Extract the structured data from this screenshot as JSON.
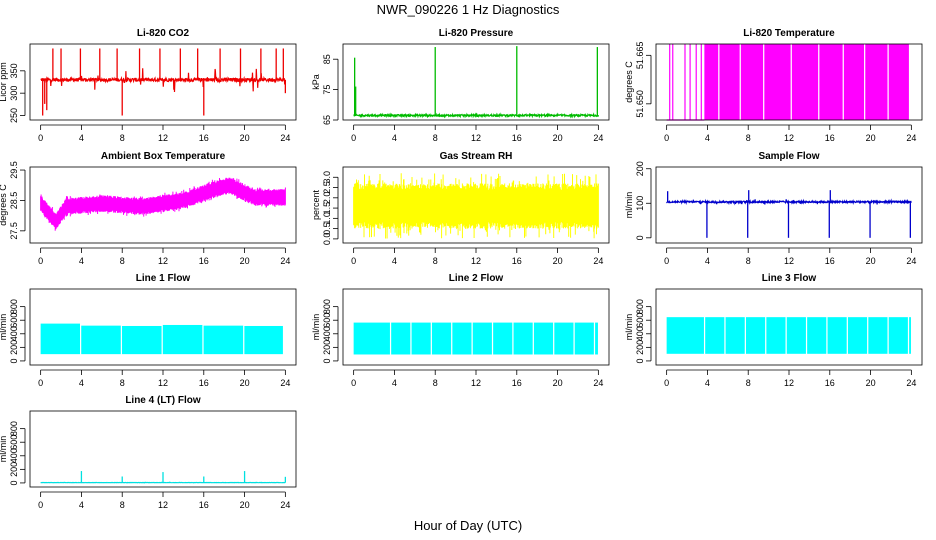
{
  "title": "NWR_090226  1 Hz Diagnostics",
  "x_axis_label": "Hour of Day (UTC)",
  "chart_data": [
    {
      "id": "co2",
      "type": "line",
      "title": "Li-820 CO2",
      "ylabel": "Licor ppm",
      "color": "#ee0000",
      "ylim": [
        240,
        410
      ],
      "yticks": [
        250,
        300,
        350
      ],
      "xlim": [
        0,
        24
      ],
      "xticks": [
        0,
        4,
        8,
        12,
        16,
        20,
        24
      ],
      "series": [
        {
          "kind": "noise",
          "base": 330,
          "amp": 4,
          "noise_max": 28,
          "spikes": [
            {
              "x": 0.2,
              "v": 250
            },
            {
              "x": 0.4,
              "v": 276
            },
            {
              "x": 0.6,
              "v": 262
            },
            {
              "x": 1.2,
              "v": 400
            },
            {
              "x": 2.0,
              "v": 400
            },
            {
              "x": 3.9,
              "v": 400
            },
            {
              "x": 5.8,
              "v": 400
            },
            {
              "x": 7.5,
              "v": 400
            },
            {
              "x": 8.0,
              "v": 250
            },
            {
              "x": 9.7,
              "v": 400
            },
            {
              "x": 11.7,
              "v": 400
            },
            {
              "x": 13.7,
              "v": 400
            },
            {
              "x": 15.4,
              "v": 400
            },
            {
              "x": 16.0,
              "v": 250
            },
            {
              "x": 17.6,
              "v": 400
            },
            {
              "x": 19.6,
              "v": 400
            },
            {
              "x": 21.6,
              "v": 400
            },
            {
              "x": 23.1,
              "v": 400
            },
            {
              "x": 23.8,
              "v": 400
            },
            {
              "x": 24.0,
              "v": 300
            }
          ]
        }
      ]
    },
    {
      "id": "pressure",
      "type": "line",
      "title": "Li-820 Pressure",
      "ylabel": "kPa",
      "color": "#00bb00",
      "ylim": [
        65,
        90
      ],
      "yticks": [
        65,
        75,
        85
      ],
      "xlim": [
        0,
        24
      ],
      "xticks": [
        0,
        4,
        8,
        12,
        16,
        20,
        24
      ],
      "series": [
        {
          "kind": "noise",
          "base": 66.5,
          "amp": 0.3,
          "noise_max": 0.5,
          "spikes": [
            {
              "x": 0.1,
              "v": 85.5
            },
            {
              "x": 0.2,
              "v": 76
            },
            {
              "x": 8.0,
              "v": 89
            },
            {
              "x": 16.0,
              "v": 89.3
            },
            {
              "x": 23.9,
              "v": 89
            }
          ]
        }
      ]
    },
    {
      "id": "li820temp",
      "type": "bar",
      "title": "Li-820 Temperature",
      "ylabel": "degrees C",
      "color": "#ff00ff",
      "ylim": [
        51.645,
        51.6685
      ],
      "yticks": [
        51.65,
        51.665
      ],
      "ytick_labels": [
        "51.650",
        "51.665"
      ],
      "xlim": [
        0,
        24
      ],
      "xticks": [
        0,
        4,
        8,
        12,
        16,
        20,
        24
      ],
      "series": [
        {
          "kind": "fill_bands",
          "low": 51.645,
          "high": 51.6685,
          "start": 3.7,
          "end": 23.8,
          "early_lines": [
            0.3,
            0.6,
            1.8,
            2.3,
            2.9,
            3.4
          ],
          "gaps": [
            5.1,
            7.2,
            9.5,
            12.2,
            14.9,
            17.3,
            19.4,
            21.7
          ]
        }
      ]
    },
    {
      "id": "ambient",
      "type": "line",
      "title": "Ambient Box Temperature",
      "ylabel": "degrees C",
      "color": "#ff00ff",
      "ylim": [
        27.1,
        29.6
      ],
      "yticks": [
        27.5,
        28.5,
        29.5
      ],
      "xlim": [
        0,
        24
      ],
      "xticks": [
        0,
        4,
        8,
        12,
        16,
        20,
        24
      ],
      "series": [
        {
          "kind": "band",
          "profile": [
            [
              0,
              28.4
            ],
            [
              1.5,
              27.8
            ],
            [
              2.5,
              28.3
            ],
            [
              6,
              28.4
            ],
            [
              10,
              28.3
            ],
            [
              14,
              28.5
            ],
            [
              16.5,
              28.8
            ],
            [
              18.5,
              29.0
            ],
            [
              21,
              28.6
            ],
            [
              24,
              28.6
            ]
          ],
          "width": 0.55,
          "noise_max": 0.7
        }
      ]
    },
    {
      "id": "gasrh",
      "type": "line",
      "title": "Gas Stream RH",
      "ylabel": "percent",
      "color": "#ffff00",
      "ylim": [
        -0.2,
        3.5
      ],
      "yticks": [
        0,
        0.5,
        1,
        1.5,
        2,
        2.5,
        3
      ],
      "ytick_labels": [
        "0.0",
        "0.5",
        "1.0",
        "1.5",
        "2.0",
        "2.5",
        "3.0"
      ],
      "xlim": [
        0,
        24
      ],
      "xticks": [
        0,
        4,
        8,
        12,
        16,
        20,
        24
      ],
      "series": [
        {
          "kind": "band",
          "profile": [
            [
              0,
              1.6
            ],
            [
              24,
              1.6
            ]
          ],
          "width": 2.2,
          "noise_max": 3.2
        }
      ]
    },
    {
      "id": "sampleflow",
      "type": "line",
      "title": "Sample Flow",
      "ylabel": "ml/min",
      "color": "#0000cc",
      "ylim": [
        -15,
        205
      ],
      "yticks": [
        0,
        100,
        200
      ],
      "xlim": [
        0,
        24
      ],
      "xticks": [
        0,
        4,
        8,
        12,
        16,
        20,
        24
      ],
      "series": [
        {
          "kind": "noise",
          "base": 104,
          "amp": 2.5,
          "noise_max": 8,
          "spikes": [
            {
              "x": 0.1,
              "v": 135
            },
            {
              "x": 3.95,
              "v": 0
            },
            {
              "x": 7.95,
              "v": 0
            },
            {
              "x": 8.05,
              "v": 138
            },
            {
              "x": 11.95,
              "v": 0
            },
            {
              "x": 15.95,
              "v": 0
            },
            {
              "x": 16.05,
              "v": 138
            },
            {
              "x": 19.95,
              "v": 0
            },
            {
              "x": 23.9,
              "v": 0
            }
          ]
        }
      ]
    },
    {
      "id": "line1",
      "type": "bar",
      "title": "Line 1 Flow",
      "ylabel": "ml/min",
      "color": "#00ffff",
      "ylim": [
        -60,
        1060
      ],
      "yticks": [
        0,
        200,
        400,
        600,
        800
      ],
      "xlim": [
        0,
        24
      ],
      "xticks": [
        0,
        4,
        8,
        12,
        16,
        20,
        24
      ],
      "series": [
        {
          "kind": "fill_bands",
          "low": 100,
          "high": 545,
          "start": 0.0,
          "end": 23.8,
          "gaps": [
            3.9,
            7.9,
            11.9,
            15.9,
            19.9
          ],
          "steps": [
            [
              0,
              550
            ],
            [
              3.9,
              520
            ],
            [
              7.9,
              515
            ],
            [
              11.9,
              530
            ],
            [
              15.9,
              520
            ],
            [
              19.9,
              515
            ]
          ]
        }
      ]
    },
    {
      "id": "line2",
      "type": "bar",
      "title": "Line 2 Flow",
      "ylabel": "ml/min",
      "color": "#00ffff",
      "ylim": [
        -60,
        1060
      ],
      "yticks": [
        0,
        200,
        400,
        600,
        800
      ],
      "xlim": [
        0,
        24
      ],
      "xticks": [
        0,
        4,
        8,
        12,
        16,
        20,
        24
      ],
      "series": [
        {
          "kind": "fill_bands",
          "low": 95,
          "high": 560,
          "start": 0.0,
          "end": 24.0,
          "gaps": [
            3.6,
            5.6,
            7.6,
            9.6,
            11.6,
            13.6,
            15.6,
            17.6,
            19.6,
            21.6,
            23.6
          ],
          "steps": [
            [
              0,
              565
            ]
          ]
        }
      ]
    },
    {
      "id": "line3",
      "type": "bar",
      "title": "Line 3 Flow",
      "ylabel": "ml/min",
      "color": "#00ffff",
      "ylim": [
        -60,
        1060
      ],
      "yticks": [
        0,
        200,
        400,
        600,
        800
      ],
      "xlim": [
        0,
        24
      ],
      "xticks": [
        0,
        4,
        8,
        12,
        16,
        20,
        24
      ],
      "series": [
        {
          "kind": "fill_bands",
          "low": 105,
          "high": 640,
          "start": 0.0,
          "end": 24.0,
          "gaps": [
            3.7,
            5.7,
            7.7,
            9.7,
            11.7,
            13.7,
            15.7,
            17.7,
            19.7,
            21.7,
            23.7
          ],
          "steps": [
            [
              0,
              645
            ]
          ]
        }
      ]
    },
    {
      "id": "line4",
      "type": "line",
      "title": "Line 4 (LT) Flow",
      "ylabel": "ml/min",
      "color": "#00e0e0",
      "ylim": [
        -60,
        1060
      ],
      "yticks": [
        0,
        200,
        400,
        600,
        800
      ],
      "xlim": [
        0,
        24
      ],
      "xticks": [
        0,
        4,
        8,
        12,
        16,
        20,
        24
      ],
      "series": [
        {
          "kind": "noise",
          "base": 5,
          "amp": 1.5,
          "noise_max": 4,
          "spikes": [
            {
              "x": 4.0,
              "v": 175
            },
            {
              "x": 8.0,
              "v": 95
            },
            {
              "x": 12.0,
              "v": 160
            },
            {
              "x": 16.0,
              "v": 95
            },
            {
              "x": 20.0,
              "v": 175
            },
            {
              "x": 24.0,
              "v": 90
            }
          ]
        }
      ]
    }
  ]
}
